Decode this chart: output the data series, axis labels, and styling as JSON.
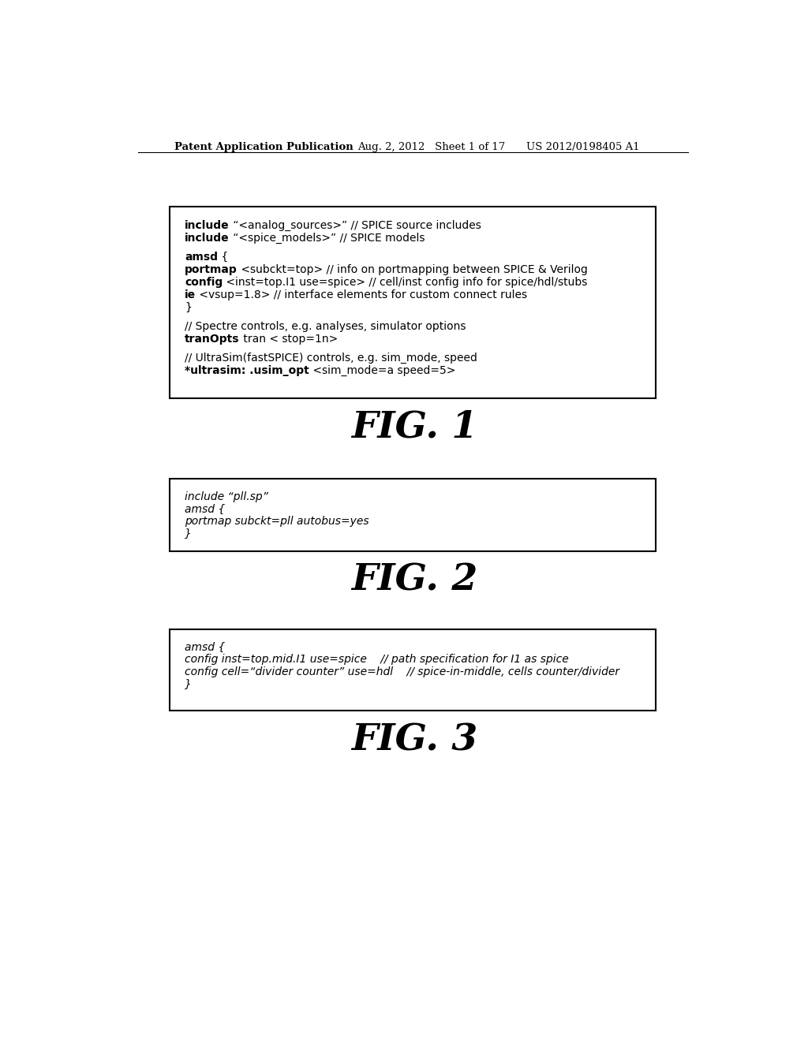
{
  "bg_color": "#ffffff",
  "header_left": "Patent Application Publication",
  "header_center": "Aug. 2, 2012   Sheet 1 of 17",
  "header_right": "US 2012/0198405 A1",
  "fig1_title": "FIG. 1",
  "fig2_title": "FIG. 2",
  "fig3_title": "FIG. 3",
  "fig1_lines": [
    {
      "parts": [
        {
          "bold": true,
          "text": "include"
        },
        {
          "bold": false,
          "text": " “<analog_sources>” // SPICE source includes"
        }
      ]
    },
    {
      "parts": [
        {
          "bold": true,
          "text": "include"
        },
        {
          "bold": false,
          "text": " “<spice_models>” // SPICE models"
        }
      ]
    },
    {
      "blank": true
    },
    {
      "parts": [
        {
          "bold": true,
          "text": "amsd"
        },
        {
          "bold": false,
          "text": " {"
        }
      ]
    },
    {
      "parts": [
        {
          "bold": true,
          "text": "portmap"
        },
        {
          "bold": false,
          "text": " <subckt=top> // info on portmapping between SPICE & Verilog"
        }
      ]
    },
    {
      "parts": [
        {
          "bold": true,
          "text": "config"
        },
        {
          "bold": false,
          "text": " <inst=top.I1 use=spice> // cell/inst config info for spice/hdl/stubs"
        }
      ]
    },
    {
      "parts": [
        {
          "bold": true,
          "text": "ie"
        },
        {
          "bold": false,
          "text": " <vsup=1.8> // interface elements for custom connect rules"
        }
      ]
    },
    {
      "parts": [
        {
          "bold": false,
          "text": "}"
        }
      ]
    },
    {
      "blank": true
    },
    {
      "parts": [
        {
          "bold": false,
          "text": "// Spectre controls, e.g. analyses, simulator options"
        }
      ]
    },
    {
      "parts": [
        {
          "bold": true,
          "text": "tranOpts"
        },
        {
          "bold": false,
          "text": " tran < stop=1n>"
        }
      ]
    },
    {
      "blank": true
    },
    {
      "parts": [
        {
          "bold": false,
          "text": "// UltraSim(fastSPICE) controls, e.g. sim_mode, speed"
        }
      ]
    },
    {
      "parts": [
        {
          "bold": true,
          "text": "*ultrasim: .usim_opt"
        },
        {
          "bold": false,
          "text": " <sim_mode=a speed=5>"
        }
      ]
    }
  ],
  "fig2_lines": [
    "include “pll.sp”",
    "amsd {",
    "portmap subckt=pll autobus=yes",
    "}"
  ],
  "fig3_lines": [
    "amsd {",
    "config inst=top.mid.I1 use=spice    // path specification for I1 as spice",
    "config cell=“divider counter” use=hdl    // spice-in-middle, cells counter/divider",
    "}"
  ]
}
